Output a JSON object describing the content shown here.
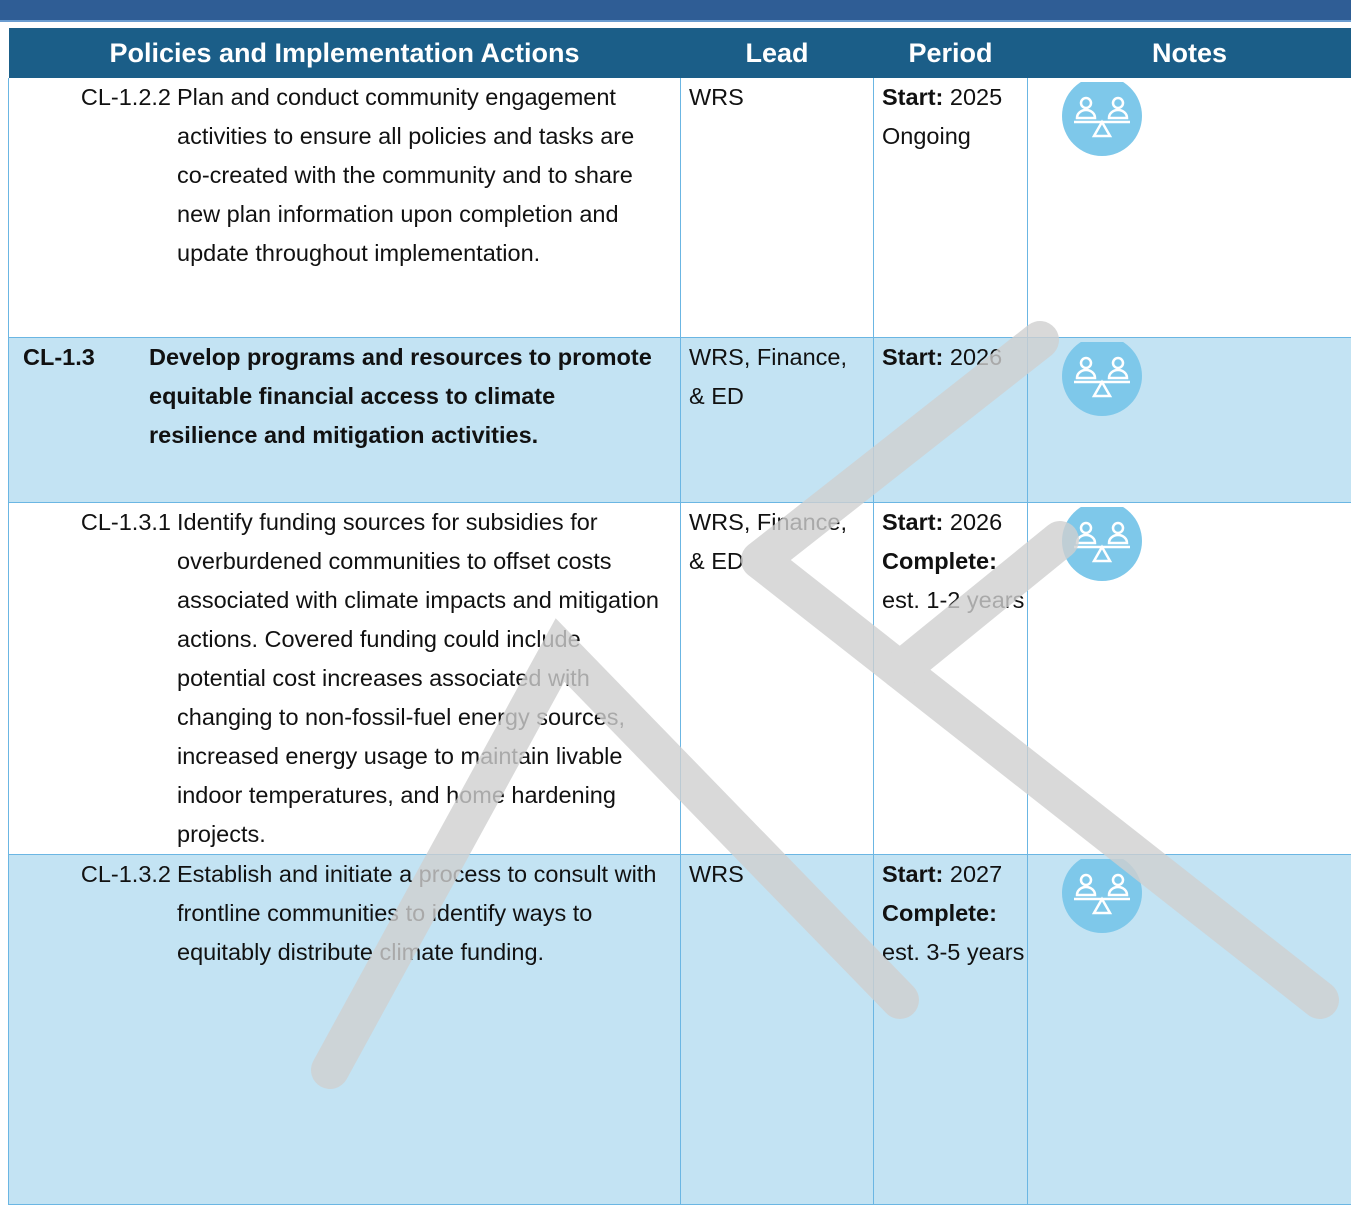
{
  "header": {
    "columns": [
      "Policies and Implementation Actions",
      "Lead",
      "Period",
      "Notes"
    ]
  },
  "table": {
    "rows": [
      {
        "id": "CL-1.2.2",
        "action": "Plan and conduct community engagement activities to ensure all policies and tasks are co-created with the community and to share new plan information upon completion and update throughout implementation.",
        "lead": "WRS",
        "period": [
          {
            "label": "Start:",
            "text": "2025"
          },
          {
            "text": "Ongoing"
          }
        ]
      },
      {
        "id": "CL-1.3",
        "action": "Develop programs and resources to promote equitable financial access to climate resilience and mitigation activities.",
        "lead": "WRS, Finance, & ED",
        "period": [
          {
            "label": "Start:",
            "text": "2026"
          }
        ]
      },
      {
        "id": "CL-1.3.1",
        "action": "Identify funding sources for subsidies for overburdened communities to offset costs associated with climate impacts and mitigation actions. Covered funding could include potential cost increases associated with changing to non-fossil-fuel energy sources, increased energy usage to maintain livable indoor temperatures, and home hardening projects.",
        "lead": "WRS, Finance, & ED",
        "period": [
          {
            "label": "Start:",
            "text": "2026"
          },
          {
            "label": "Complete:",
            "text": "est. 1-2 years"
          }
        ]
      },
      {
        "id": "CL-1.3.2",
        "action": "Establish and initiate a process to consult with frontline communities to identify ways to equitably distribute climate funding.",
        "lead": "WRS",
        "period": [
          {
            "label": "Start:",
            "text": "2027"
          },
          {
            "label": "Complete:",
            "text": "est. 3-5 years"
          }
        ]
      }
    ]
  }
}
